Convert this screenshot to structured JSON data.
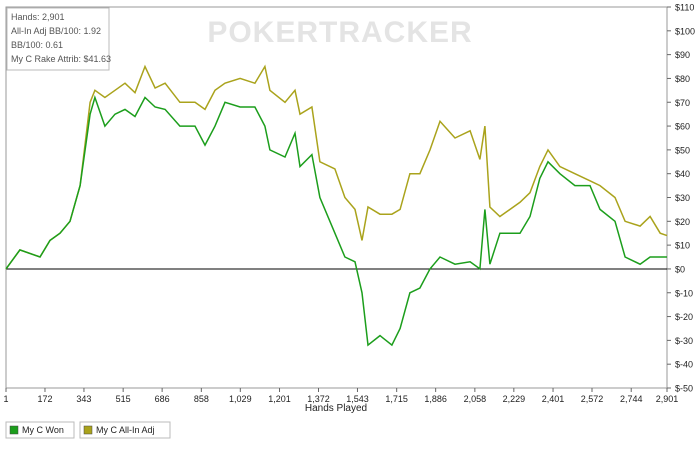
{
  "chart_data": {
    "type": "line",
    "watermark": "POKERTRACKER",
    "annotations": [
      "Hands: 2,901",
      "All-In Adj BB/100: 1.92",
      "BB/100: 0.61",
      "My C Rake Attrib: $41.63"
    ],
    "x_label": "Hands Played",
    "x": [
      1,
      62,
      150,
      194,
      238,
      282,
      326,
      370,
      391,
      435,
      479,
      523,
      567,
      611,
      655,
      699,
      764,
      830,
      874,
      918,
      962,
      1028,
      1093,
      1137,
      1159,
      1225,
      1269,
      1291,
      1343,
      1378,
      1444,
      1488,
      1532,
      1563,
      1589,
      1642,
      1694,
      1730,
      1773,
      1817,
      1861,
      1905,
      1971,
      2037,
      2080,
      2102,
      2124,
      2168,
      2256,
      2300,
      2343,
      2379,
      2431,
      2497,
      2563,
      2607,
      2673,
      2717,
      2783,
      2827,
      2871,
      2901
    ],
    "xlim": [
      1,
      2901
    ],
    "xticks": [
      1,
      172,
      343,
      515,
      686,
      858,
      {
        "value": 1029,
        "label": "1,029"
      },
      {
        "value": 1201,
        "label": "1,201"
      },
      {
        "value": 1372,
        "label": "1,372"
      },
      {
        "value": 1543,
        "label": "1,543"
      },
      {
        "value": 1715,
        "label": "1,715"
      },
      {
        "value": 1886,
        "label": "1,886"
      },
      {
        "value": 2058,
        "label": "2,058"
      },
      {
        "value": 2229,
        "label": "2,229"
      },
      {
        "value": 2401,
        "label": "2,401"
      },
      {
        "value": 2572,
        "label": "2,572"
      },
      {
        "value": 2744,
        "label": "2,744"
      },
      {
        "value": 2901,
        "label": "2,901"
      }
    ],
    "ylim": [
      -50,
      110
    ],
    "yticks": [
      {
        "value": -50,
        "label": "$-50"
      },
      {
        "value": -40,
        "label": "$-40"
      },
      {
        "value": -30,
        "label": "$-30"
      },
      {
        "value": -20,
        "label": "$-20"
      },
      {
        "value": -10,
        "label": "$-10"
      },
      {
        "value": 0,
        "label": "$0"
      },
      {
        "value": 10,
        "label": "$10"
      },
      {
        "value": 20,
        "label": "$20"
      },
      {
        "value": 30,
        "label": "$30"
      },
      {
        "value": 40,
        "label": "$40"
      },
      {
        "value": 50,
        "label": "$50"
      },
      {
        "value": 60,
        "label": "$60"
      },
      {
        "value": 70,
        "label": "$70"
      },
      {
        "value": 80,
        "label": "$80"
      },
      {
        "value": 90,
        "label": "$90"
      },
      {
        "value": 100,
        "label": "$100"
      },
      {
        "value": 110,
        "label": "$110"
      }
    ],
    "legend": "bottom-left",
    "series": [
      {
        "name": "My C Won",
        "color": "#1c9e1c",
        "values": [
          0,
          8,
          5,
          12,
          15,
          20,
          35,
          65,
          72,
          60,
          65,
          67,
          64,
          72,
          68,
          67,
          60,
          60,
          52,
          60,
          70,
          68,
          68,
          60,
          50,
          47,
          57,
          43,
          48,
          30,
          15,
          5,
          3,
          -10,
          -32,
          -28,
          -32,
          -25,
          -10,
          -8,
          0,
          5,
          2,
          3,
          0,
          25,
          2,
          15,
          15,
          22,
          38,
          45,
          40,
          35,
          35,
          25,
          20,
          5,
          2,
          5,
          5,
          5
        ]
      },
      {
        "name": "My C All-In Adj",
        "color": "#aaa31c",
        "values": [
          0,
          8,
          5,
          12,
          15,
          20,
          35,
          70,
          75,
          72,
          75,
          78,
          74,
          85,
          76,
          78,
          70,
          70,
          67,
          75,
          78,
          80,
          78,
          85,
          75,
          70,
          75,
          65,
          68,
          45,
          42,
          30,
          25,
          12,
          26,
          23,
          23,
          25,
          40,
          40,
          50,
          62,
          55,
          58,
          46,
          60,
          26,
          22,
          28,
          32,
          43,
          50,
          43,
          40,
          37,
          35,
          30,
          20,
          18,
          22,
          15,
          14
        ]
      }
    ]
  }
}
